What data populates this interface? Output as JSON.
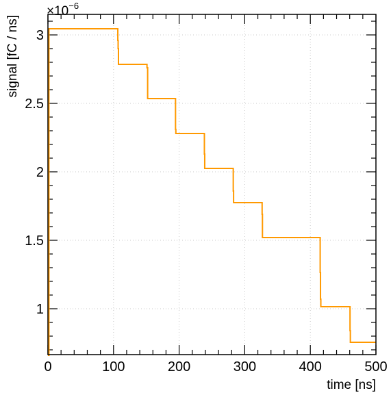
{
  "chart_data": {
    "type": "line",
    "step": true,
    "xlabel": "time [ns]",
    "ylabel": "signal [fC / ns]",
    "y_multiplier": "×10",
    "y_multiplier_exponent": "−6",
    "xlim": [
      0,
      500
    ],
    "ylim": [
      0.665,
      3.15
    ],
    "x_ticks": [
      0,
      100,
      200,
      300,
      400,
      500
    ],
    "x_tick_labels": [
      "0",
      "100",
      "200",
      "300",
      "400",
      "500"
    ],
    "y_ticks": [
      1,
      1.5,
      2,
      2.5,
      3
    ],
    "y_tick_labels": [
      "1",
      "1.5",
      "2",
      "2.5",
      "3"
    ],
    "grid": true,
    "line_color": "#ff9900",
    "series": [
      {
        "x": [
          0,
          1.5,
          106,
          106.5,
          107,
          107.5,
          150,
          151,
          152,
          194,
          194.5,
          195,
          238,
          238.5,
          239,
          282,
          282.5,
          283,
          326,
          326.5,
          327,
          371,
          415,
          415.5,
          416,
          460,
          460.5,
          461,
          500
        ],
        "y": [
          0.66,
          3.045,
          3.045,
          2.96,
          2.9,
          2.785,
          2.785,
          2.76,
          2.535,
          2.535,
          2.31,
          2.28,
          2.28,
          2.13,
          2.025,
          2.025,
          1.86,
          1.775,
          1.775,
          1.69,
          1.52,
          1.52,
          1.265,
          1.07,
          1.015,
          1.015,
          0.84,
          0.755,
          0.755
        ]
      }
    ]
  }
}
